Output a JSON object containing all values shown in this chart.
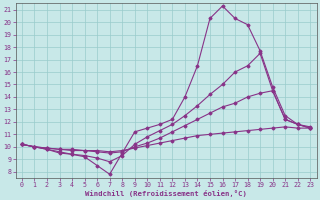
{
  "xlabel": "Windchill (Refroidissement éolien,°C)",
  "background_color": "#c8e8e8",
  "line_color": "#883388",
  "grid_color": "#99cccc",
  "xlim": [
    -0.5,
    23.5
  ],
  "ylim": [
    7.5,
    21.5
  ],
  "xticks": [
    0,
    1,
    2,
    3,
    4,
    5,
    6,
    7,
    8,
    9,
    10,
    11,
    12,
    13,
    14,
    15,
    16,
    17,
    18,
    19,
    20,
    21,
    22,
    23
  ],
  "yticks": [
    8,
    9,
    10,
    11,
    12,
    13,
    14,
    15,
    16,
    17,
    18,
    19,
    20,
    21
  ],
  "curves": [
    {
      "x": [
        0,
        1,
        2,
        3,
        4,
        5,
        6,
        7,
        8,
        9,
        10,
        11,
        12,
        13,
        14,
        15,
        16,
        17,
        18,
        19,
        20,
        21,
        22,
        23
      ],
      "y": [
        10.2,
        10.0,
        9.8,
        9.5,
        9.4,
        9.2,
        8.5,
        7.8,
        9.5,
        11.2,
        11.5,
        11.8,
        12.2,
        14.0,
        16.5,
        20.3,
        21.3,
        20.3,
        19.8,
        17.7,
        14.8,
        12.5,
        11.8,
        11.6
      ]
    },
    {
      "x": [
        0,
        1,
        2,
        3,
        4,
        5,
        6,
        7,
        8,
        9,
        10,
        11,
        12,
        13,
        14,
        15,
        16,
        17,
        18,
        19,
        20,
        21,
        22,
        23
      ],
      "y": [
        10.2,
        10.0,
        9.8,
        9.6,
        9.4,
        9.3,
        9.1,
        8.8,
        9.3,
        10.2,
        10.8,
        11.3,
        11.8,
        12.5,
        13.3,
        14.2,
        15.0,
        16.0,
        16.5,
        17.5,
        14.5,
        12.2,
        11.8,
        11.5
      ]
    },
    {
      "x": [
        0,
        1,
        2,
        3,
        4,
        5,
        6,
        7,
        8,
        9,
        10,
        11,
        12,
        13,
        14,
        15,
        16,
        17,
        18,
        19,
        20,
        21,
        22,
        23
      ],
      "y": [
        10.2,
        10.0,
        9.9,
        9.8,
        9.7,
        9.7,
        9.6,
        9.5,
        9.6,
        10.0,
        10.3,
        10.7,
        11.2,
        11.7,
        12.2,
        12.7,
        13.2,
        13.5,
        14.0,
        14.3,
        14.5,
        12.2,
        11.8,
        11.5
      ]
    },
    {
      "x": [
        0,
        1,
        2,
        3,
        4,
        5,
        6,
        7,
        8,
        9,
        10,
        11,
        12,
        13,
        14,
        15,
        16,
        17,
        18,
        19,
        20,
        21,
        22,
        23
      ],
      "y": [
        10.2,
        10.0,
        9.9,
        9.8,
        9.8,
        9.7,
        9.7,
        9.6,
        9.7,
        9.9,
        10.1,
        10.3,
        10.5,
        10.7,
        10.9,
        11.0,
        11.1,
        11.2,
        11.3,
        11.4,
        11.5,
        11.6,
        11.5,
        11.5
      ]
    }
  ]
}
